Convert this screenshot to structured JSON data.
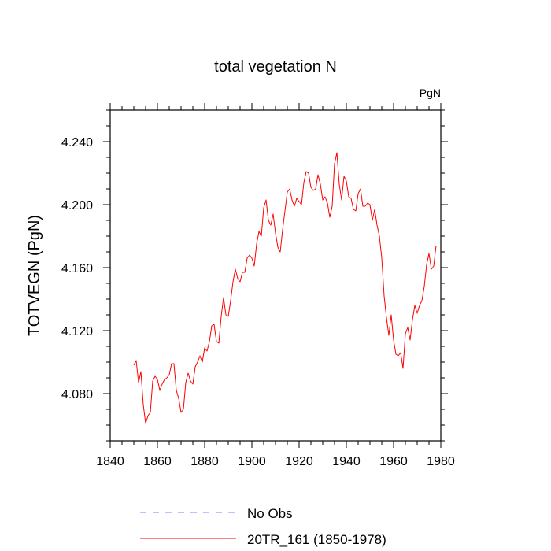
{
  "chart_data": {
    "type": "line",
    "title": "total vegetation N",
    "units_label": "PgN",
    "xlabel": "",
    "ylabel": "TOTVEGN  (PgN)",
    "xlim": [
      1840,
      1980
    ],
    "ylim": [
      4.05,
      4.26
    ],
    "x_ticks": [
      1840,
      1860,
      1880,
      1900,
      1920,
      1940,
      1960,
      1980
    ],
    "y_ticks": [
      4.08,
      4.12,
      4.16,
      4.2,
      4.24
    ],
    "y_tick_labels": [
      "4.080",
      "4.120",
      "4.160",
      "4.200",
      "4.240"
    ],
    "series": [
      {
        "name": "No Obs",
        "color": "#8080ff",
        "style": "dashed",
        "x": [],
        "values": []
      },
      {
        "name": "20TR_161 (1850-1978)",
        "color": "#ff0000",
        "style": "solid",
        "x": [
          1850,
          1851,
          1852,
          1853,
          1854,
          1855,
          1856,
          1857,
          1858,
          1859,
          1860,
          1861,
          1862,
          1863,
          1864,
          1865,
          1866,
          1867,
          1868,
          1869,
          1870,
          1871,
          1872,
          1873,
          1874,
          1875,
          1876,
          1877,
          1878,
          1879,
          1880,
          1881,
          1882,
          1883,
          1884,
          1885,
          1886,
          1887,
          1888,
          1889,
          1890,
          1891,
          1892,
          1893,
          1894,
          1895,
          1896,
          1897,
          1898,
          1899,
          1900,
          1901,
          1902,
          1903,
          1904,
          1905,
          1906,
          1907,
          1908,
          1909,
          1910,
          1911,
          1912,
          1913,
          1914,
          1915,
          1916,
          1917,
          1918,
          1919,
          1920,
          1921,
          1922,
          1923,
          1924,
          1925,
          1926,
          1927,
          1928,
          1929,
          1930,
          1931,
          1932,
          1933,
          1934,
          1935,
          1936,
          1937,
          1938,
          1939,
          1940,
          1941,
          1942,
          1943,
          1944,
          1945,
          1946,
          1947,
          1948,
          1949,
          1950,
          1951,
          1952,
          1953,
          1954,
          1955,
          1956,
          1957,
          1958,
          1959,
          1960,
          1961,
          1962,
          1963,
          1964,
          1965,
          1966,
          1967,
          1968,
          1969,
          1970,
          1971,
          1972,
          1973,
          1974,
          1975,
          1976,
          1977,
          1978
        ],
        "values": [
          4.098,
          4.101,
          4.087,
          4.094,
          4.073,
          4.061,
          4.066,
          4.068,
          4.088,
          4.091,
          4.089,
          4.082,
          4.086,
          4.089,
          4.09,
          4.092,
          4.099,
          4.099,
          4.082,
          4.077,
          4.068,
          4.07,
          4.087,
          4.093,
          4.088,
          4.086,
          4.097,
          4.1,
          4.104,
          4.1,
          4.109,
          4.107,
          4.113,
          4.123,
          4.124,
          4.113,
          4.112,
          4.129,
          4.141,
          4.13,
          4.129,
          4.139,
          4.151,
          4.159,
          4.153,
          4.151,
          4.157,
          4.157,
          4.166,
          4.168,
          4.166,
          4.161,
          4.175,
          4.183,
          4.18,
          4.198,
          4.203,
          4.19,
          4.187,
          4.194,
          4.182,
          4.173,
          4.17,
          4.184,
          4.196,
          4.208,
          4.21,
          4.203,
          4.199,
          4.204,
          4.202,
          4.2,
          4.214,
          4.221,
          4.22,
          4.211,
          4.209,
          4.21,
          4.219,
          4.213,
          4.203,
          4.205,
          4.201,
          4.192,
          4.199,
          4.226,
          4.233,
          4.213,
          4.203,
          4.218,
          4.215,
          4.205,
          4.204,
          4.197,
          4.196,
          4.207,
          4.21,
          4.199,
          4.199,
          4.201,
          4.2,
          4.19,
          4.197,
          4.187,
          4.18,
          4.166,
          4.142,
          4.128,
          4.117,
          4.13,
          4.114,
          4.105,
          4.104,
          4.106,
          4.096,
          4.118,
          4.122,
          4.114,
          4.127,
          4.136,
          4.131,
          4.136,
          4.139,
          4.148,
          4.162,
          4.169,
          4.159,
          4.161,
          4.174
        ]
      }
    ]
  }
}
